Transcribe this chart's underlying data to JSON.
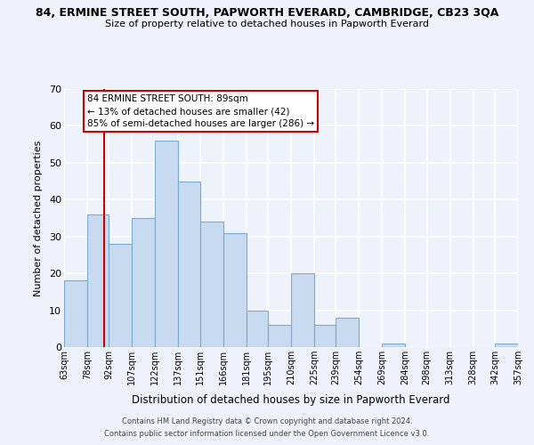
{
  "title": "84, ERMINE STREET SOUTH, PAPWORTH EVERARD, CAMBRIDGE, CB23 3QA",
  "subtitle": "Size of property relative to detached houses in Papworth Everard",
  "xlabel": "Distribution of detached houses by size in Papworth Everard",
  "ylabel": "Number of detached properties",
  "bar_edges": [
    63,
    78,
    92,
    107,
    122,
    137,
    151,
    166,
    181,
    195,
    210,
    225,
    239,
    254,
    269,
    284,
    298,
    313,
    328,
    342,
    357
  ],
  "bar_heights": [
    18,
    36,
    28,
    35,
    56,
    45,
    34,
    31,
    10,
    6,
    20,
    6,
    8,
    0,
    1,
    0,
    0,
    0,
    0,
    1
  ],
  "bar_color": "#c8daf0",
  "bar_edge_color": "#7aaad0",
  "property_line_x": 89,
  "property_line_color": "#cc0000",
  "annotation_line1": "84 ERMINE STREET SOUTH: 89sqm",
  "annotation_line2": "← 13% of detached houses are smaller (42)",
  "annotation_line3": "85% of semi-detached houses are larger (286) →",
  "annotation_box_color": "#ffffff",
  "annotation_box_edge": "#cc0000",
  "ylim": [
    0,
    70
  ],
  "yticks": [
    0,
    10,
    20,
    30,
    40,
    50,
    60,
    70
  ],
  "tick_labels": [
    "63sqm",
    "78sqm",
    "92sqm",
    "107sqm",
    "122sqm",
    "137sqm",
    "151sqm",
    "166sqm",
    "181sqm",
    "195sqm",
    "210sqm",
    "225sqm",
    "239sqm",
    "254sqm",
    "269sqm",
    "284sqm",
    "298sqm",
    "313sqm",
    "328sqm",
    "342sqm",
    "357sqm"
  ],
  "footer_line1": "Contains HM Land Registry data © Crown copyright and database right 2024.",
  "footer_line2": "Contains public sector information licensed under the Open Government Licence v3.0.",
  "background_color": "#edf2fb",
  "grid_color": "#ffffff"
}
